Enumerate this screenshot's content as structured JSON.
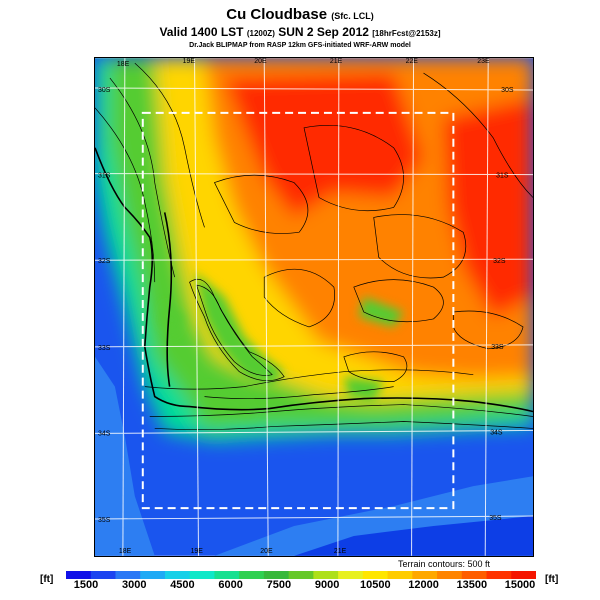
{
  "title": {
    "main": "Cu Cloudbase",
    "main_suffix": "(Sfc. LCL)",
    "valid_prefix": "Valid 1400 LST",
    "valid_zulu": "(1200Z)",
    "valid_date": "SUN 2 Sep 2012",
    "valid_forecast": "[18hrFcst@2153z]",
    "credit": "Dr.Jack BLIPMAP from RASP 12km GFS-initiated WRF-ARW model"
  },
  "map": {
    "top_lon_labels": [
      "18E",
      "19E",
      "20E",
      "21E",
      "22E",
      "23E"
    ],
    "bottom_lon_labels": [
      "18E",
      "19E",
      "20E",
      "21E"
    ],
    "left_lat_labels": [
      "30S",
      "31S",
      "32S",
      "33S",
      "34S",
      "35S"
    ],
    "right_lat_labels": [
      "30S",
      "31S",
      "32S",
      "33S",
      "34S",
      "35S"
    ],
    "terrain_note": "Terrain contours: 500 ft",
    "land_colors": [
      "#ff2b00",
      "#ff8200",
      "#ffd500",
      "#55cc33",
      "#00dd99"
    ],
    "sea_colors": [
      "#0d3ee6",
      "#1a55ee",
      "#2d7ef2"
    ]
  },
  "colorbar": {
    "unit_left": "[ft]",
    "unit_right": "[ft]",
    "labels": [
      "1500",
      "3000",
      "4500",
      "6000",
      "7500",
      "9000",
      "10500",
      "12000",
      "13500",
      "15000"
    ],
    "colors": [
      "#1010e8",
      "#1c44f0",
      "#2a78f5",
      "#1eaaf5",
      "#17d0e8",
      "#0fe8c8",
      "#18e090",
      "#2fd050",
      "#37b83a",
      "#66c828",
      "#aee01a",
      "#e8f020",
      "#ffe600",
      "#ffcc00",
      "#ffa800",
      "#ff8400",
      "#ff5e00",
      "#ff3300",
      "#f51500"
    ]
  }
}
